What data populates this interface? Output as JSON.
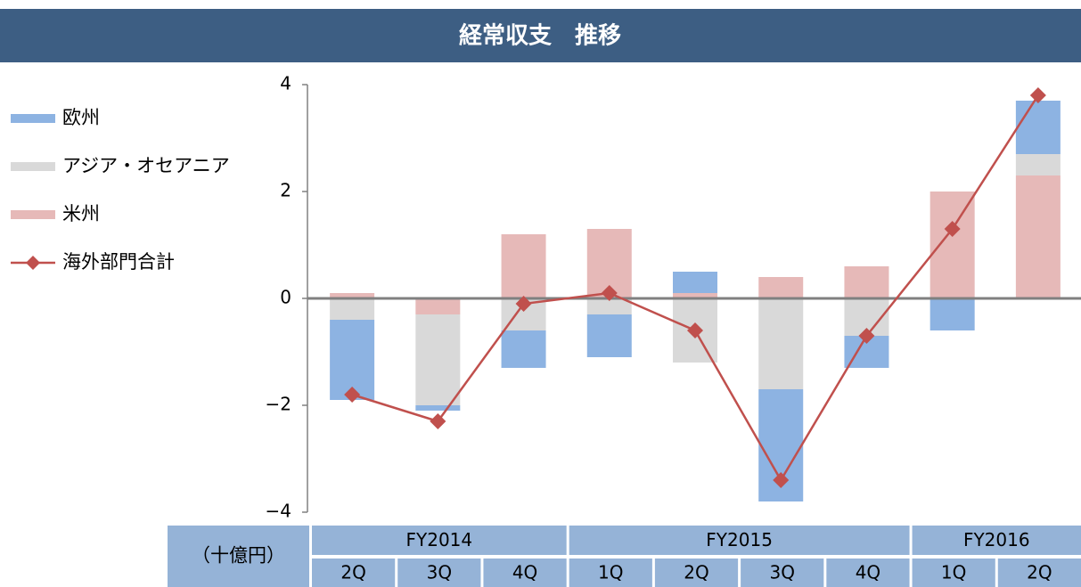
{
  "chart_data": {
    "type": "bar",
    "title": "経常収支　推移",
    "unit_label": "（十億円）",
    "categories": [
      "2Q",
      "3Q",
      "4Q",
      "1Q",
      "2Q",
      "3Q",
      "4Q",
      "1Q",
      "2Q"
    ],
    "groups": [
      {
        "label": "FY2014",
        "span": 3
      },
      {
        "label": "FY2015",
        "span": 4
      },
      {
        "label": "FY2016",
        "span": 2
      }
    ],
    "series": [
      {
        "name": "欧州",
        "color": "#8db3e2",
        "values": [
          -1.5,
          -0.1,
          -0.7,
          -0.8,
          0.4,
          -2.1,
          -0.6,
          -0.6,
          1.0
        ]
      },
      {
        "name": "アジア・オセアニア",
        "color": "#d9d9d9",
        "values": [
          -0.4,
          -1.7,
          -0.6,
          -0.3,
          -1.2,
          -1.7,
          -0.7,
          0,
          0.4
        ]
      },
      {
        "name": "米州",
        "color": "#e6b9b8",
        "values": [
          0.1,
          -0.3,
          1.2,
          1.3,
          0.1,
          0.4,
          0.6,
          2.0,
          2.3
        ]
      },
      {
        "name": "海外部門合計",
        "type": "line",
        "color": "#c0504d",
        "values": [
          -1.8,
          -2.3,
          -0.1,
          0.1,
          -0.6,
          -3.4,
          -0.7,
          1.3,
          3.8
        ]
      }
    ],
    "ylim": [
      -4,
      4
    ],
    "yticks": [
      {
        "value": -4,
        "label": "−4"
      },
      {
        "value": -2,
        "label": "−2"
      },
      0,
      2,
      4
    ],
    "legend": "left"
  }
}
